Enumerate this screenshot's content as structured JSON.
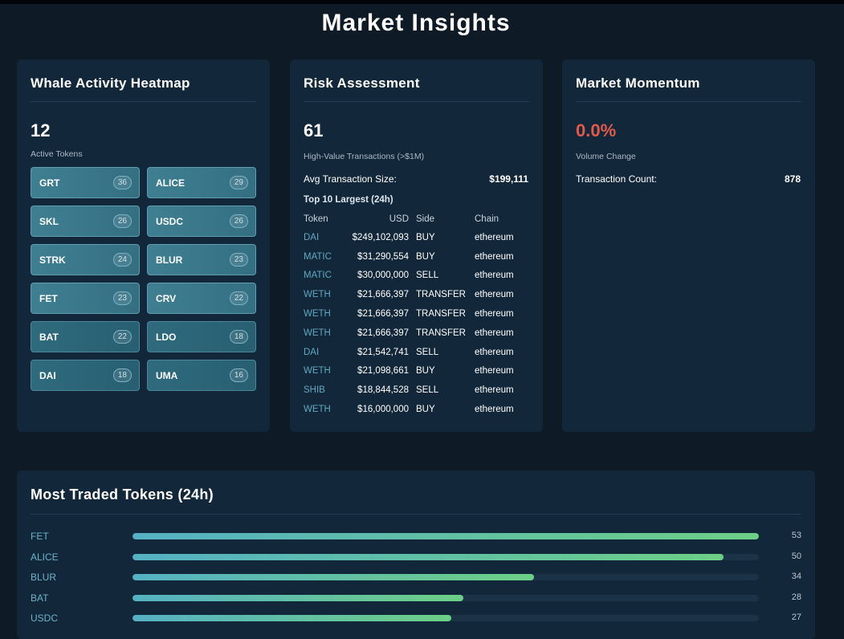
{
  "page": {
    "title": "Market Insights"
  },
  "whale_heatmap": {
    "title": "Whale Activity Heatmap",
    "active_count": "12",
    "active_label": "Active Tokens",
    "tokens": [
      {
        "symbol": "GRT",
        "count": "36"
      },
      {
        "symbol": "ALICE",
        "count": "29"
      },
      {
        "symbol": "SKL",
        "count": "26"
      },
      {
        "symbol": "USDC",
        "count": "26"
      },
      {
        "symbol": "STRK",
        "count": "24"
      },
      {
        "symbol": "BLUR",
        "count": "23"
      },
      {
        "symbol": "FET",
        "count": "23"
      },
      {
        "symbol": "CRV",
        "count": "22"
      },
      {
        "symbol": "BAT",
        "count": "22"
      },
      {
        "symbol": "LDO",
        "count": "18"
      },
      {
        "symbol": "DAI",
        "count": "18"
      },
      {
        "symbol": "UMA",
        "count": "16"
      }
    ]
  },
  "risk": {
    "title": "Risk Assessment",
    "high_value_count": "61",
    "high_value_label": "High-Value Transactions (>$1M)",
    "avg_label": "Avg Transaction Size:",
    "avg_value": "$199,111",
    "top_label": "Top 10 Largest (24h)",
    "columns": {
      "token": "Token",
      "usd": "USD",
      "side": "Side",
      "chain": "Chain"
    },
    "rows": [
      {
        "token": "DAI",
        "usd": "$249,102,093",
        "side": "BUY",
        "chain": "ethereum"
      },
      {
        "token": "MATIC",
        "usd": "$31,290,554",
        "side": "BUY",
        "chain": "ethereum"
      },
      {
        "token": "MATIC",
        "usd": "$30,000,000",
        "side": "SELL",
        "chain": "ethereum"
      },
      {
        "token": "WETH",
        "usd": "$21,666,397",
        "side": "TRANSFER",
        "chain": "ethereum"
      },
      {
        "token": "WETH",
        "usd": "$21,666,397",
        "side": "TRANSFER",
        "chain": "ethereum"
      },
      {
        "token": "WETH",
        "usd": "$21,666,397",
        "side": "TRANSFER",
        "chain": "ethereum"
      },
      {
        "token": "DAI",
        "usd": "$21,542,741",
        "side": "SELL",
        "chain": "ethereum"
      },
      {
        "token": "WETH",
        "usd": "$21,098,661",
        "side": "BUY",
        "chain": "ethereum"
      },
      {
        "token": "SHIB",
        "usd": "$18,844,528",
        "side": "SELL",
        "chain": "ethereum"
      },
      {
        "token": "WETH",
        "usd": "$16,000,000",
        "side": "BUY",
        "chain": "ethereum"
      }
    ]
  },
  "momentum": {
    "title": "Market Momentum",
    "volume_change": "0.0%",
    "volume_label": "Volume Change",
    "tx_count_label": "Transaction Count:",
    "tx_count": "878",
    "negative_color": "#e25a4c"
  },
  "most_traded": {
    "title": "Most Traded Tokens (24h)",
    "max": 53,
    "items": [
      {
        "token": "FET",
        "count": 53
      },
      {
        "token": "ALICE",
        "count": 50
      },
      {
        "token": "BLUR",
        "count": 34
      },
      {
        "token": "BAT",
        "count": 28
      },
      {
        "token": "USDC",
        "count": 27
      }
    ]
  }
}
